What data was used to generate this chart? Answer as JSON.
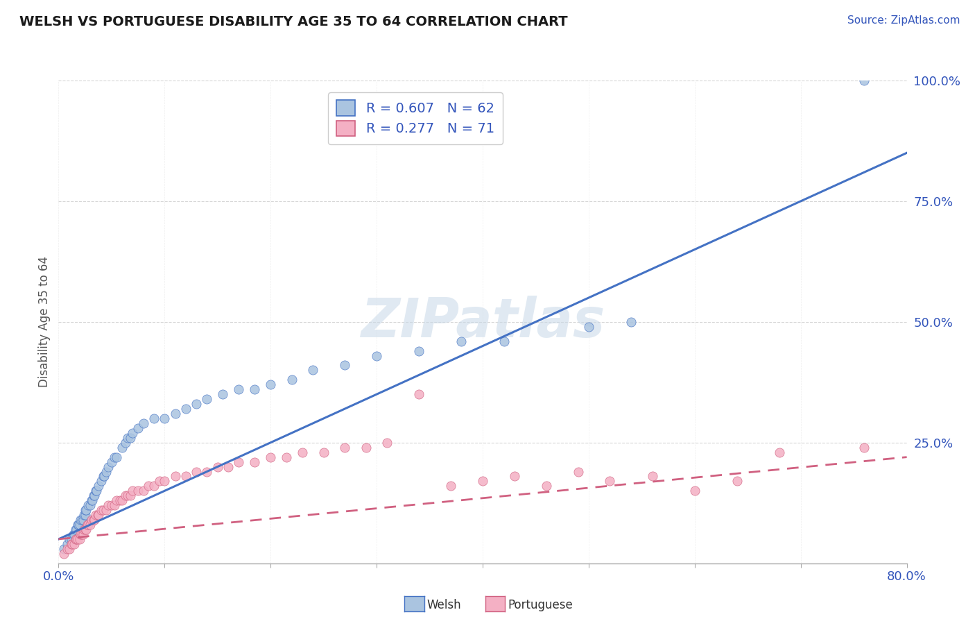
{
  "title": "WELSH VS PORTUGUESE DISABILITY AGE 35 TO 64 CORRELATION CHART",
  "source_text": "Source: ZipAtlas.com",
  "ylabel": "Disability Age 35 to 64",
  "xlim": [
    0.0,
    0.8
  ],
  "ylim": [
    0.0,
    1.0
  ],
  "xticks": [
    0.0,
    0.1,
    0.2,
    0.3,
    0.4,
    0.5,
    0.6,
    0.7,
    0.8
  ],
  "ytick_positions": [
    0.25,
    0.5,
    0.75,
    1.0
  ],
  "yticklabels": [
    "25.0%",
    "50.0%",
    "75.0%",
    "100.0%"
  ],
  "welsh_R": 0.607,
  "welsh_N": 62,
  "portuguese_R": 0.277,
  "portuguese_N": 71,
  "welsh_color": "#aac4e0",
  "welsh_line_color": "#4472c4",
  "portuguese_color": "#f4b0c4",
  "portuguese_line_color": "#d06080",
  "watermark_color": "#c8d8e8",
  "legend_label_welsh": "Welsh",
  "legend_label_portuguese": "Portuguese",
  "welsh_scatter_x": [
    0.005,
    0.008,
    0.01,
    0.012,
    0.014,
    0.015,
    0.016,
    0.017,
    0.018,
    0.019,
    0.02,
    0.021,
    0.022,
    0.023,
    0.024,
    0.025,
    0.025,
    0.026,
    0.028,
    0.03,
    0.031,
    0.032,
    0.033,
    0.034,
    0.035,
    0.036,
    0.038,
    0.04,
    0.042,
    0.043,
    0.045,
    0.047,
    0.05,
    0.053,
    0.055,
    0.06,
    0.063,
    0.065,
    0.068,
    0.07,
    0.075,
    0.08,
    0.09,
    0.1,
    0.11,
    0.12,
    0.13,
    0.14,
    0.155,
    0.17,
    0.185,
    0.2,
    0.22,
    0.24,
    0.27,
    0.3,
    0.34,
    0.38,
    0.42,
    0.5,
    0.54,
    0.76
  ],
  "welsh_scatter_y": [
    0.03,
    0.04,
    0.05,
    0.05,
    0.06,
    0.06,
    0.07,
    0.07,
    0.08,
    0.08,
    0.08,
    0.09,
    0.09,
    0.09,
    0.1,
    0.1,
    0.11,
    0.11,
    0.12,
    0.12,
    0.13,
    0.13,
    0.14,
    0.14,
    0.15,
    0.15,
    0.16,
    0.17,
    0.18,
    0.18,
    0.19,
    0.2,
    0.21,
    0.22,
    0.22,
    0.24,
    0.25,
    0.26,
    0.26,
    0.27,
    0.28,
    0.29,
    0.3,
    0.3,
    0.31,
    0.32,
    0.33,
    0.34,
    0.35,
    0.36,
    0.36,
    0.37,
    0.38,
    0.4,
    0.41,
    0.43,
    0.44,
    0.46,
    0.46,
    0.49,
    0.5,
    1.0
  ],
  "portuguese_scatter_x": [
    0.005,
    0.008,
    0.01,
    0.012,
    0.013,
    0.015,
    0.016,
    0.017,
    0.018,
    0.02,
    0.021,
    0.022,
    0.023,
    0.024,
    0.025,
    0.026,
    0.027,
    0.028,
    0.03,
    0.031,
    0.033,
    0.034,
    0.035,
    0.037,
    0.038,
    0.04,
    0.042,
    0.045,
    0.047,
    0.05,
    0.053,
    0.055,
    0.058,
    0.06,
    0.063,
    0.065,
    0.068,
    0.07,
    0.075,
    0.08,
    0.085,
    0.09,
    0.095,
    0.1,
    0.11,
    0.12,
    0.13,
    0.14,
    0.15,
    0.16,
    0.17,
    0.185,
    0.2,
    0.215,
    0.23,
    0.25,
    0.27,
    0.29,
    0.31,
    0.34,
    0.37,
    0.4,
    0.43,
    0.46,
    0.49,
    0.52,
    0.56,
    0.6,
    0.64,
    0.68,
    0.76
  ],
  "portuguese_scatter_y": [
    0.02,
    0.03,
    0.03,
    0.04,
    0.04,
    0.04,
    0.05,
    0.05,
    0.05,
    0.05,
    0.06,
    0.06,
    0.06,
    0.07,
    0.07,
    0.07,
    0.08,
    0.08,
    0.08,
    0.09,
    0.09,
    0.09,
    0.1,
    0.1,
    0.1,
    0.11,
    0.11,
    0.11,
    0.12,
    0.12,
    0.12,
    0.13,
    0.13,
    0.13,
    0.14,
    0.14,
    0.14,
    0.15,
    0.15,
    0.15,
    0.16,
    0.16,
    0.17,
    0.17,
    0.18,
    0.18,
    0.19,
    0.19,
    0.2,
    0.2,
    0.21,
    0.21,
    0.22,
    0.22,
    0.23,
    0.23,
    0.24,
    0.24,
    0.25,
    0.35,
    0.16,
    0.17,
    0.18,
    0.16,
    0.19,
    0.17,
    0.18,
    0.15,
    0.17,
    0.23,
    0.24
  ]
}
